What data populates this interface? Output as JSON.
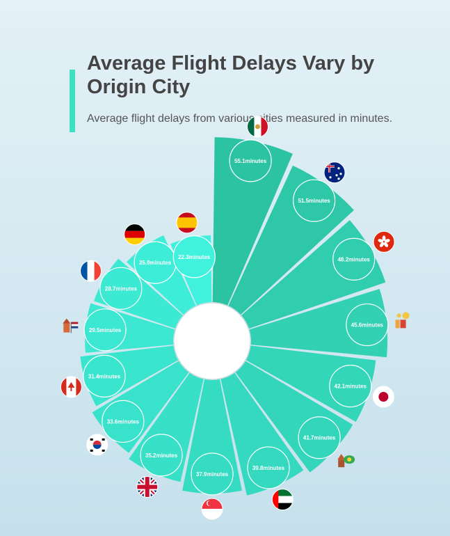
{
  "header": {
    "title": "Average Flight Delays Vary by Origin City",
    "subtitle": "Average flight delays from various cities measured in minutes."
  },
  "colors": {
    "accent": "#3fe0c0",
    "bar_dark": "#2cc3a3",
    "bar_light": "#40f2de"
  },
  "chart_data": {
    "type": "bar",
    "layout": "radial",
    "unit": "minutes",
    "categories": [
      "Mexico",
      "Australia",
      "Hong Kong",
      "Portugal",
      "Japan",
      "Brazil",
      "United Arab Emirates",
      "Singapore",
      "United Kingdom",
      "South Korea",
      "Canada",
      "Netherlands",
      "France",
      "Germany",
      "Spain"
    ],
    "values": [
      55.1,
      51.5,
      48.2,
      45.6,
      42.1,
      41.7,
      39.8,
      37.9,
      35.2,
      33.6,
      31.4,
      29.5,
      28.7,
      25.9,
      22.3
    ],
    "labels": [
      "55.1minutes",
      "51.5minutes",
      "48.2minutes",
      "45.6minutes",
      "42.1minutes",
      "41.7minutes",
      "39.8minutes",
      "37.9minutes",
      "35.2minutes",
      "33.6minutes",
      "31.4minutes",
      "29.5minutes",
      "28.7minutes",
      "25.9minutes",
      "22.3minutes"
    ],
    "icons": [
      "mexico-flag-icon",
      "australia-flag-icon",
      "hong-kong-flag-icon",
      "portugal-landmark-icon",
      "japan-flag-icon",
      "brazil-landmark-icon",
      "uae-flag-icon",
      "singapore-flag-icon",
      "uk-flag-icon",
      "south-korea-flag-icon",
      "canada-flag-icon",
      "netherlands-landmark-icon",
      "france-flag-icon",
      "germany-flag-icon",
      "spain-flag-icon"
    ]
  }
}
